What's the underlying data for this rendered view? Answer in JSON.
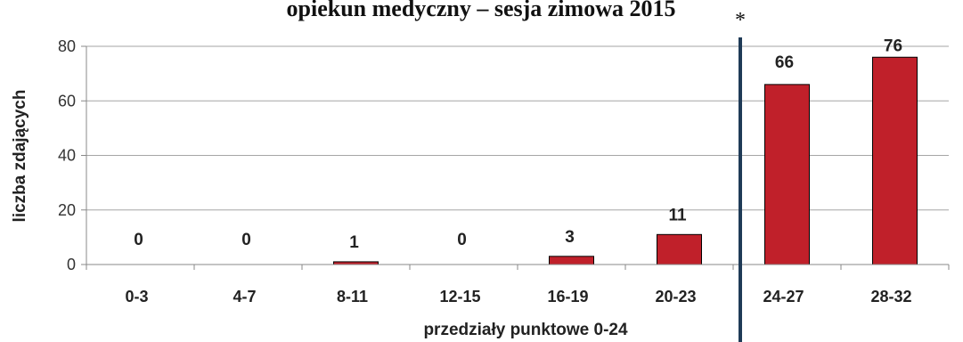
{
  "chart_data": {
    "type": "bar",
    "title": "opiekun medyczny – sesja zimowa 2015",
    "xlabel": "przedziały punktowe 0-24",
    "ylabel": "liczba zdających",
    "categories": [
      "0-3",
      "4-7",
      "8-11",
      "12-15",
      "16-19",
      "20-23",
      "24-27",
      "28-32"
    ],
    "values": [
      0,
      0,
      1,
      0,
      3,
      11,
      66,
      76
    ],
    "ylim": [
      0,
      80
    ],
    "yticks": [
      0,
      20,
      40,
      60,
      80
    ],
    "grid": true,
    "bar_color": "#c0202a",
    "marker_color": "#1f3b57",
    "threshold_annotation": "*"
  }
}
